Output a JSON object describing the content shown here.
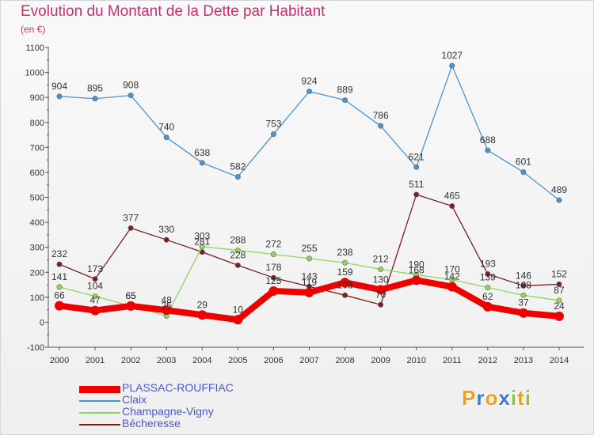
{
  "header": {
    "title": "Evolution du Montant de la Dette par Habitant",
    "unit": "(en €)"
  },
  "logo": {
    "text": "Proxiti",
    "colors": [
      "#f0a020",
      "#3a7fd0",
      "#f0a020",
      "#3a7fd0",
      "#8bc34a",
      "#f0a020",
      "#8bc34a"
    ]
  },
  "chart_data": {
    "type": "line",
    "title": "Evolution du Montant de la Dette par Habitant",
    "ylabel": "(en €)",
    "ylim": [
      -100,
      1100
    ],
    "yticks": [
      -100,
      0,
      100,
      200,
      300,
      400,
      500,
      600,
      700,
      800,
      900,
      1000,
      1100
    ],
    "grid": false,
    "legend_position": "bottom-left",
    "x": [
      "2000",
      "2001",
      "2002",
      "2003",
      "2004",
      "2005",
      "2006",
      "2007",
      "2008",
      "2009",
      "2010",
      "2011",
      "2012",
      "2013",
      "2014"
    ],
    "series": [
      {
        "name": "Bécheresse",
        "color": "#7a2020",
        "values": [
          232,
          173,
          377,
          330,
          281,
          228,
          178,
          143,
          108,
          70,
          511,
          465,
          193,
          146,
          152
        ],
        "labels": [
          "232",
          "173",
          "377",
          "330",
          "281",
          "228",
          "178",
          "143",
          "108",
          "70",
          "511",
          "465",
          "193",
          "146",
          "152"
        ]
      },
      {
        "name": "Champagne-Vigny",
        "color": "#8fd65a",
        "values": [
          141,
          104,
          65,
          25,
          303,
          288,
          272,
          255,
          238,
          212,
          190,
          170,
          139,
          108,
          87
        ],
        "labels": [
          "141",
          "104",
          "65",
          "25",
          "303",
          "288",
          "272",
          "255",
          "238",
          "212",
          "190",
          "170",
          "139",
          "108",
          "87"
        ]
      },
      {
        "name": "Claix",
        "color": "#4b94d0",
        "values": [
          904,
          895,
          908,
          740,
          638,
          582,
          753,
          924,
          889,
          786,
          621,
          1027,
          688,
          601,
          489
        ],
        "labels": [
          "904",
          "895",
          "908",
          "740",
          "638",
          "582",
          "753",
          "924",
          "889",
          "786",
          "621",
          "1027",
          "688",
          "601",
          "489"
        ]
      },
      {
        "name": "PLASSAC-ROUFFIAC",
        "color": "#ee0000",
        "values": [
          66,
          47,
          65,
          48,
          29,
          10,
          125,
          119,
          159,
          130,
          168,
          142,
          62,
          37,
          24
        ],
        "labels": [
          "66",
          "47",
          "65",
          "48",
          "29",
          "10",
          "125",
          "119",
          "159",
          "130",
          "168",
          "142",
          "62",
          "37",
          "24"
        ]
      }
    ],
    "legend": [
      {
        "name": "PLASSAC-ROUFFIAC",
        "color": "#ee0000",
        "thick": true
      },
      {
        "name": "Claix",
        "color": "#4b94d0",
        "thick": false
      },
      {
        "name": "Champagne-Vigny",
        "color": "#8fd65a",
        "thick": false
      },
      {
        "name": "Bécheresse",
        "color": "#7a2020",
        "thick": false
      }
    ]
  }
}
